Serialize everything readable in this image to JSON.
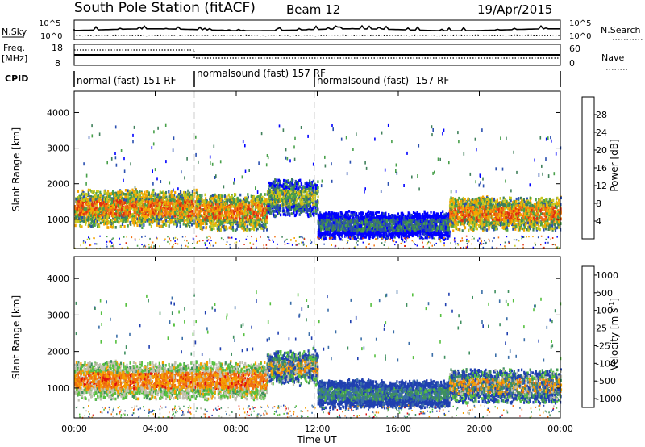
{
  "header": {
    "title": "South Pole Station (fitACF)",
    "beam": "Beam 12",
    "date": "19/Apr/2015"
  },
  "strip": {
    "nsky_label": "N.Sky",
    "nsky_ticks": [
      "10^5",
      "10^0"
    ],
    "nsearch_label": "N.Search",
    "nsearch_ticks": [
      "10^5",
      "10^0"
    ],
    "freq_label_1": "Freq.",
    "freq_label_2": "[MHz]",
    "freq_ticks": [
      "18",
      "8"
    ],
    "nave_label": "Nave",
    "nave_ticks": [
      "60",
      "0"
    ],
    "cpid_label": "CPID",
    "cpid_segments": [
      "normal (fast) 151 RF",
      "normalsound (fast) 157 RF",
      "normalsound (fast) -157 RF"
    ]
  },
  "chart_data": [
    {
      "type": "heatmap",
      "name": "power-panel",
      "xlabel": "Time UT",
      "ylabel": "Slant Range [km]",
      "xlim": [
        0,
        24
      ],
      "ylim": [
        180,
        4600
      ],
      "x_ticks": [
        "00:00",
        "04:00",
        "08:00",
        "12:00",
        "16:00",
        "20:00",
        "00:00"
      ],
      "y_ticks": [
        "1000",
        "2000",
        "3000",
        "4000"
      ],
      "colorbar": {
        "label": "Power [dB]",
        "range": [
          0,
          32
        ],
        "ticks": [
          "4",
          "8",
          "12",
          "16",
          "20",
          "24",
          "28"
        ],
        "colors": [
          "#0000ff",
          "#2a4fb0",
          "#3f7f5a",
          "#48a04a",
          "#c8c81e",
          "#f5a500",
          "#f07010",
          "#e03010"
        ]
      },
      "echo_bands": [
        {
          "t": [
            0.0,
            1.5
          ],
          "range": [
            800,
            1800
          ],
          "level": "high"
        },
        {
          "t": [
            1.5,
            6.0
          ],
          "range": [
            800,
            1800
          ],
          "level": "high"
        },
        {
          "t": [
            6.0,
            9.5
          ],
          "range": [
            700,
            1700
          ],
          "level": "high"
        },
        {
          "t": [
            9.5,
            12.0
          ],
          "range": [
            1100,
            2100
          ],
          "level": "medium"
        },
        {
          "t": [
            12.0,
            18.5
          ],
          "range": [
            450,
            1200
          ],
          "level": "low"
        },
        {
          "t": [
            18.5,
            24.0
          ],
          "range": [
            700,
            1600
          ],
          "level": "high"
        }
      ]
    },
    {
      "type": "heatmap",
      "name": "velocity-panel",
      "xlabel": "Time UT",
      "ylabel": "Slant Range [km]",
      "xlim": [
        0,
        24
      ],
      "ylim": [
        180,
        4600
      ],
      "x_ticks": [
        "00:00",
        "04:00",
        "08:00",
        "12:00",
        "16:00",
        "20:00",
        "00:00"
      ],
      "y_ticks": [
        "1000",
        "2000",
        "3000",
        "4000"
      ],
      "colorbar": {
        "label": "Velocity [m s^-1]",
        "ticks": [
          "1000",
          "500",
          "100",
          "25",
          "-25",
          "-100",
          "-500",
          "-1000"
        ],
        "colors": [
          "#2040b0",
          "#3a6ea8",
          "#3f8f5f",
          "#56c040",
          "#c0c0b0",
          "#f5a000",
          "#f07010",
          "#e01010"
        ]
      },
      "echo_bands": [
        {
          "t": [
            0.0,
            6.0
          ],
          "range": [
            700,
            1700
          ],
          "level": "negative"
        },
        {
          "t": [
            6.0,
            9.5
          ],
          "range": [
            700,
            1700
          ],
          "level": "negative"
        },
        {
          "t": [
            9.5,
            12.0
          ],
          "range": [
            1100,
            2000
          ],
          "level": "mixed"
        },
        {
          "t": [
            12.0,
            18.5
          ],
          "range": [
            450,
            1200
          ],
          "level": "positive"
        },
        {
          "t": [
            18.5,
            24.0
          ],
          "range": [
            600,
            1500
          ],
          "level": "mixed"
        }
      ]
    }
  ]
}
